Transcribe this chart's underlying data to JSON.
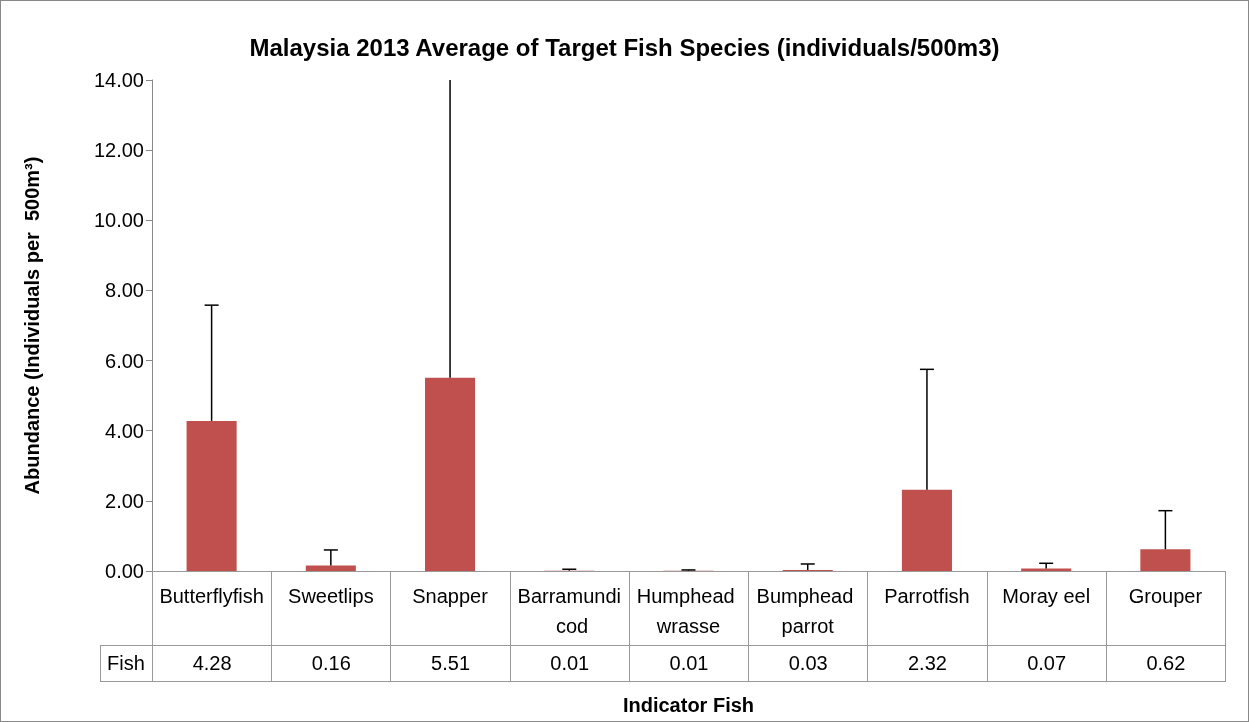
{
  "chart_data": {
    "type": "bar",
    "title": "Malaysia 2013 Average of Target Fish Species (individuals/500m3)",
    "xlabel": "Indicator Fish",
    "ylabel": "Abundance (Individuals per  500m³)",
    "categories": [
      "Butterflyfish",
      "Sweetlips",
      "Snapper",
      "Barramundi cod",
      "Humphead wrasse",
      "Bumphead parrot",
      "Parrotfish",
      "Moray eel",
      "Grouper"
    ],
    "series": [
      {
        "name": "Fish",
        "color": "#c0504d",
        "values": [
          4.28,
          0.16,
          5.51,
          0.01,
          0.01,
          0.03,
          2.32,
          0.07,
          0.62
        ],
        "errors": [
          [
            4.28,
            7.58
          ],
          [
            0.16,
            0.6
          ],
          [
            5.51,
            14
          ],
          [
            0.01,
            0.05
          ],
          [
            0.01,
            0.03
          ],
          [
            0.03,
            0.2
          ],
          [
            2.32,
            5.75
          ],
          [
            0.07,
            0.22
          ],
          [
            0.62,
            1.72
          ]
        ]
      }
    ],
    "ylim": [
      0,
      14
    ],
    "yticks": [
      {
        "value": 0,
        "label": "0.00"
      },
      {
        "value": 2,
        "label": "2.00"
      },
      {
        "value": 4,
        "label": "4.00"
      },
      {
        "value": 6,
        "label": "6.00"
      },
      {
        "value": 8,
        "label": "8.00"
      },
      {
        "value": 10,
        "label": "10.00"
      },
      {
        "value": 12,
        "label": "12.00"
      },
      {
        "value": 14,
        "label": "14.00"
      }
    ],
    "grid": false,
    "legend": false,
    "data_labels": true
  }
}
